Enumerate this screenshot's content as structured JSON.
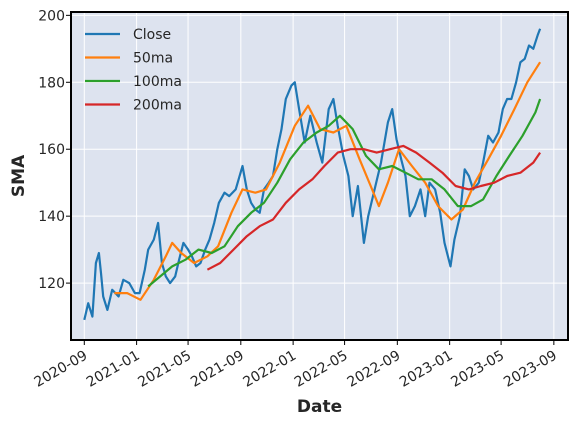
{
  "chart_data": {
    "type": "line",
    "title": "",
    "xlabel": "Date",
    "ylabel": "SMA",
    "ylim": [
      103,
      201
    ],
    "xlim": [
      "2020-08-01",
      "2023-10-04"
    ],
    "grid": true,
    "legend": "top-left",
    "x_ticks": [
      "2020-09",
      "2021-01",
      "2021-05",
      "2021-09",
      "2022-01",
      "2022-05",
      "2022-09",
      "2023-01",
      "2023-05",
      "2023-09"
    ],
    "y_ticks": [
      120,
      140,
      160,
      180,
      200
    ],
    "series": [
      {
        "name": "Close",
        "color": "#1f77b4",
        "points": [
          [
            "2020-09-01",
            109
          ],
          [
            "2020-09-10",
            114
          ],
          [
            "2020-09-20",
            110
          ],
          [
            "2020-09-28",
            126
          ],
          [
            "2020-10-05",
            129
          ],
          [
            "2020-10-10",
            123
          ],
          [
            "2020-10-15",
            116
          ],
          [
            "2020-10-25",
            112
          ],
          [
            "2020-11-05",
            118
          ],
          [
            "2020-11-20",
            116
          ],
          [
            "2020-12-01",
            121
          ],
          [
            "2020-12-15",
            120
          ],
          [
            "2020-12-28",
            117
          ],
          [
            "2021-01-08",
            117
          ],
          [
            "2021-01-20",
            124
          ],
          [
            "2021-01-28",
            130
          ],
          [
            "2021-02-10",
            133
          ],
          [
            "2021-02-20",
            138
          ],
          [
            "2021-03-01",
            126
          ],
          [
            "2021-03-10",
            122
          ],
          [
            "2021-03-20",
            120
          ],
          [
            "2021-04-01",
            122
          ],
          [
            "2021-04-10",
            127
          ],
          [
            "2021-04-20",
            132
          ],
          [
            "2021-05-01",
            130
          ],
          [
            "2021-05-10",
            128
          ],
          [
            "2021-05-20",
            125
          ],
          [
            "2021-05-30",
            126
          ],
          [
            "2021-06-10",
            130
          ],
          [
            "2021-06-20",
            133
          ],
          [
            "2021-07-01",
            138
          ],
          [
            "2021-07-12",
            144
          ],
          [
            "2021-07-25",
            147
          ],
          [
            "2021-08-05",
            146
          ],
          [
            "2021-08-20",
            148
          ],
          [
            "2021-09-05",
            155
          ],
          [
            "2021-09-15",
            148
          ],
          [
            "2021-09-25",
            144
          ],
          [
            "2021-10-05",
            142
          ],
          [
            "2021-10-15",
            141
          ],
          [
            "2021-10-25",
            148
          ],
          [
            "2021-11-05",
            150
          ],
          [
            "2021-11-15",
            152
          ],
          [
            "2021-11-25",
            160
          ],
          [
            "2021-12-05",
            166
          ],
          [
            "2021-12-15",
            175
          ],
          [
            "2021-12-28",
            179
          ],
          [
            "2022-01-05",
            180
          ],
          [
            "2022-01-15",
            172
          ],
          [
            "2022-01-28",
            162
          ],
          [
            "2022-02-10",
            170
          ],
          [
            "2022-02-25",
            162
          ],
          [
            "2022-03-10",
            156
          ],
          [
            "2022-03-25",
            172
          ],
          [
            "2022-04-05",
            175
          ],
          [
            "2022-04-15",
            167
          ],
          [
            "2022-04-28",
            158
          ],
          [
            "2022-05-10",
            152
          ],
          [
            "2022-05-20",
            140
          ],
          [
            "2022-06-01",
            149
          ],
          [
            "2022-06-15",
            132
          ],
          [
            "2022-06-25",
            140
          ],
          [
            "2022-07-10",
            148
          ],
          [
            "2022-07-25",
            156
          ],
          [
            "2022-08-10",
            168
          ],
          [
            "2022-08-20",
            172
          ],
          [
            "2022-08-30",
            163
          ],
          [
            "2022-09-10",
            157
          ],
          [
            "2022-09-20",
            152
          ],
          [
            "2022-09-30",
            140
          ],
          [
            "2022-10-12",
            143
          ],
          [
            "2022-10-25",
            148
          ],
          [
            "2022-11-05",
            140
          ],
          [
            "2022-11-15",
            150
          ],
          [
            "2022-11-28",
            148
          ],
          [
            "2022-12-10",
            141
          ],
          [
            "2022-12-20",
            132
          ],
          [
            "2023-01-03",
            125
          ],
          [
            "2023-01-12",
            133
          ],
          [
            "2023-01-25",
            140
          ],
          [
            "2023-02-05",
            154
          ],
          [
            "2023-02-15",
            152
          ],
          [
            "2023-02-25",
            148
          ],
          [
            "2023-03-10",
            150
          ],
          [
            "2023-03-20",
            156
          ],
          [
            "2023-04-01",
            164
          ],
          [
            "2023-04-12",
            162
          ],
          [
            "2023-04-25",
            165
          ],
          [
            "2023-05-05",
            172
          ],
          [
            "2023-05-15",
            175
          ],
          [
            "2023-05-25",
            175
          ],
          [
            "2023-06-05",
            180
          ],
          [
            "2023-06-15",
            186
          ],
          [
            "2023-06-25",
            187
          ],
          [
            "2023-07-05",
            191
          ],
          [
            "2023-07-15",
            190
          ],
          [
            "2023-07-25",
            194
          ],
          [
            "2023-07-31",
            196
          ]
        ]
      },
      {
        "name": "50ma",
        "color": "#ff7f0e",
        "points": [
          [
            "2020-11-10",
            117
          ],
          [
            "2020-12-10",
            117
          ],
          [
            "2021-01-10",
            115
          ],
          [
            "2021-02-10",
            121
          ],
          [
            "2021-03-10",
            128
          ],
          [
            "2021-03-25",
            132
          ],
          [
            "2021-04-15",
            129
          ],
          [
            "2021-05-15",
            126
          ],
          [
            "2021-06-15",
            128
          ],
          [
            "2021-07-10",
            131
          ],
          [
            "2021-08-10",
            141
          ],
          [
            "2021-09-05",
            148
          ],
          [
            "2021-10-05",
            147
          ],
          [
            "2021-10-30",
            148
          ],
          [
            "2021-12-01",
            156
          ],
          [
            "2022-01-05",
            167
          ],
          [
            "2022-02-05",
            173
          ],
          [
            "2022-03-05",
            166
          ],
          [
            "2022-04-05",
            165
          ],
          [
            "2022-05-05",
            167
          ],
          [
            "2022-06-05",
            157
          ],
          [
            "2022-07-01",
            149
          ],
          [
            "2022-07-20",
            143
          ],
          [
            "2022-08-10",
            150
          ],
          [
            "2022-09-05",
            160
          ],
          [
            "2022-10-05",
            155
          ],
          [
            "2022-11-05",
            150
          ],
          [
            "2022-12-05",
            143
          ],
          [
            "2023-01-05",
            139
          ],
          [
            "2023-02-01",
            142
          ],
          [
            "2023-03-01",
            150
          ],
          [
            "2023-04-01",
            157
          ],
          [
            "2023-05-01",
            164
          ],
          [
            "2023-06-01",
            172
          ],
          [
            "2023-07-01",
            180
          ],
          [
            "2023-07-31",
            186
          ]
        ]
      },
      {
        "name": "100ma",
        "color": "#2ca02c",
        "points": [
          [
            "2021-01-28",
            119
          ],
          [
            "2021-02-25",
            122
          ],
          [
            "2021-03-25",
            125
          ],
          [
            "2021-04-25",
            127
          ],
          [
            "2021-05-25",
            130
          ],
          [
            "2021-06-25",
            129
          ],
          [
            "2021-07-25",
            131
          ],
          [
            "2021-08-25",
            137
          ],
          [
            "2021-09-25",
            141
          ],
          [
            "2021-10-25",
            144
          ],
          [
            "2021-11-25",
            150
          ],
          [
            "2021-12-25",
            157
          ],
          [
            "2022-01-25",
            162
          ],
          [
            "2022-02-25",
            165
          ],
          [
            "2022-03-25",
            167
          ],
          [
            "2022-04-20",
            170
          ],
          [
            "2022-05-20",
            166
          ],
          [
            "2022-06-20",
            158
          ],
          [
            "2022-07-20",
            154
          ],
          [
            "2022-08-20",
            155
          ],
          [
            "2022-09-20",
            153
          ],
          [
            "2022-10-20",
            151
          ],
          [
            "2022-11-20",
            151
          ],
          [
            "2022-12-20",
            148
          ],
          [
            "2023-01-20",
            143
          ],
          [
            "2023-02-20",
            143
          ],
          [
            "2023-03-20",
            145
          ],
          [
            "2023-04-20",
            152
          ],
          [
            "2023-05-20",
            158
          ],
          [
            "2023-06-20",
            164
          ],
          [
            "2023-07-20",
            171
          ],
          [
            "2023-07-31",
            175
          ]
        ]
      },
      {
        "name": "200ma",
        "color": "#d62728",
        "points": [
          [
            "2021-06-15",
            124
          ],
          [
            "2021-07-15",
            126
          ],
          [
            "2021-08-15",
            130
          ],
          [
            "2021-09-15",
            134
          ],
          [
            "2021-10-15",
            137
          ],
          [
            "2021-11-15",
            139
          ],
          [
            "2021-12-15",
            144
          ],
          [
            "2022-01-15",
            148
          ],
          [
            "2022-02-15",
            151
          ],
          [
            "2022-03-15",
            155
          ],
          [
            "2022-04-15",
            159
          ],
          [
            "2022-05-15",
            160
          ],
          [
            "2022-06-15",
            160
          ],
          [
            "2022-07-15",
            159
          ],
          [
            "2022-08-15",
            160
          ],
          [
            "2022-09-15",
            161
          ],
          [
            "2022-10-15",
            159
          ],
          [
            "2022-11-15",
            156
          ],
          [
            "2022-12-15",
            153
          ],
          [
            "2023-01-15",
            149
          ],
          [
            "2023-02-15",
            148
          ],
          [
            "2023-03-15",
            149
          ],
          [
            "2023-04-15",
            150
          ],
          [
            "2023-05-15",
            152
          ],
          [
            "2023-06-15",
            153
          ],
          [
            "2023-07-15",
            156
          ],
          [
            "2023-07-31",
            159
          ]
        ]
      }
    ]
  }
}
